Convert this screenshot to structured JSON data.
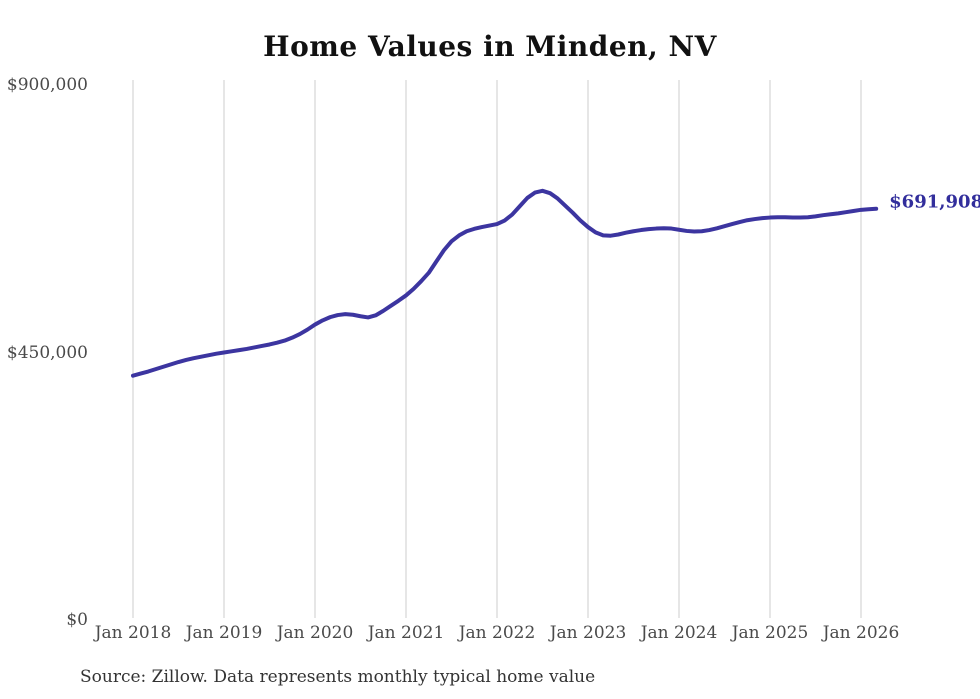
{
  "title": "Home Values in Minden, NV",
  "source_note": "Source: Zillow. Data represents monthly typical home value",
  "end_label": "$691,908",
  "colors": {
    "line": "#3c35a0",
    "end_label": "#322e9c",
    "grid": "#cccccc",
    "title": "#111111",
    "axis_text": "#4a4a4a",
    "background": "#ffffff"
  },
  "y_axis": {
    "ticks": [
      {
        "label": "$900,000",
        "value": 900000
      },
      {
        "label": "$450,000",
        "value": 450000
      },
      {
        "label": "$0",
        "value": 0
      }
    ]
  },
  "x_axis": {
    "ticks": [
      "Jan 2018",
      "Jan 2019",
      "Jan 2020",
      "Jan 2021",
      "Jan 2022",
      "Jan 2023",
      "Jan 2024",
      "Jan 2025",
      "Jan 2026"
    ]
  },
  "chart_data": {
    "type": "line",
    "title": "Home Values in Minden, NV",
    "xlabel": "",
    "ylabel": "",
    "ylim": [
      0,
      900000
    ],
    "grid": "vertical-only",
    "legend": "none",
    "last_value_label": "$691,908",
    "series": [
      {
        "name": "Monthly typical home value",
        "start_month": "Jan 2018",
        "end_month": "Mar 2026",
        "frequency": "monthly",
        "values": [
          411000,
          414500,
          418000,
          422000,
          426000,
          430000,
          434000,
          437500,
          440500,
          443000,
          445500,
          448000,
          450000,
          452000,
          454000,
          456000,
          458500,
          461000,
          463500,
          466500,
          470000,
          475000,
          481000,
          488500,
          497000,
          504000,
          509500,
          513000,
          514500,
          513500,
          511000,
          509000,
          512500,
          520000,
          528500,
          537000,
          546000,
          557000,
          570000,
          584000,
          603000,
          622000,
          637000,
          647000,
          654000,
          658000,
          661000,
          663500,
          666000,
          672000,
          682000,
          696000,
          710000,
          719000,
          722000,
          718000,
          709000,
          697000,
          685000,
          672000,
          661000,
          652000,
          647000,
          646500,
          648500,
          651500,
          654000,
          656000,
          657500,
          658500,
          659000,
          658500,
          656500,
          654500,
          653500,
          654000,
          656000,
          659000,
          662500,
          666000,
          669500,
          672500,
          674500,
          676000,
          677000,
          677500,
          677500,
          677000,
          677000,
          677500,
          679000,
          681000,
          682500,
          684000,
          686000,
          688000,
          690000,
          691000,
          691908
        ]
      }
    ]
  }
}
